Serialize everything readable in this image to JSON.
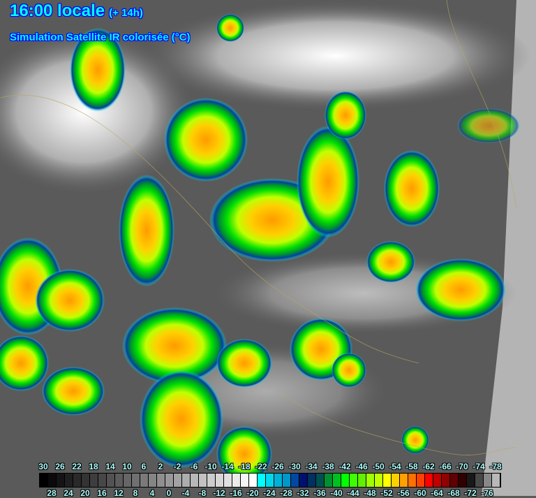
{
  "header": {
    "time": "16:00 locale",
    "offset": "(+ 14h)",
    "subtitle": "Simulation Satellite IR colorisée (°C)"
  },
  "legend": {
    "unit": "°C",
    "values": [
      30,
      28,
      26,
      24,
      22,
      20,
      18,
      16,
      14,
      12,
      10,
      8,
      6,
      4,
      2,
      0,
      -2,
      -4,
      -6,
      -8,
      -10,
      -12,
      -14,
      -16,
      -18,
      -20,
      -22,
      -24,
      -26,
      -28,
      -30,
      -32,
      -34,
      -36,
      -38,
      -40,
      -42,
      -44,
      -46,
      -48,
      -50,
      -52,
      -54,
      -56,
      -58,
      -60,
      -62,
      -64,
      -66,
      -68,
      -70,
      -72,
      -74,
      -76,
      -78
    ],
    "top_labels": [
      "30",
      "26",
      "22",
      "18",
      "14",
      "10",
      "6",
      "2",
      "-2",
      "-6",
      "-10",
      "-14",
      "-18",
      "-22",
      "-26",
      "-30",
      "-34",
      "-38",
      "-42",
      "-46",
      "-50",
      "-54",
      "-58",
      "-62",
      "-66",
      "-70",
      "-74",
      "-78"
    ],
    "bottom_labels": [
      "28",
      "24",
      "20",
      "16",
      "12",
      "8",
      "4",
      "0",
      "-4",
      "-8",
      "-12",
      "-16",
      "-20",
      "-24",
      "-28",
      "-32",
      "-36",
      "-40",
      "-44",
      "-48",
      "-52",
      "-56",
      "-60",
      "-64",
      "-68",
      "-72",
      "-76"
    ],
    "cold_colors": [
      "#00ffff",
      "#00d8ec",
      "#00b0d8",
      "#0098c8",
      "#0048a0",
      "#001070",
      "#003060",
      "#005050",
      "#009030",
      "#00c020",
      "#00ff00",
      "#40ff00",
      "#60f000",
      "#a0ff00",
      "#c0ff00",
      "#ffff00",
      "#ffd000",
      "#ffa000",
      "#ff7000",
      "#ff4000",
      "#ff0000",
      "#c00000",
      "#900000",
      "#600000",
      "#300000",
      "#181818",
      "#484848",
      "#888888",
      "#b8b8b8"
    ]
  }
}
